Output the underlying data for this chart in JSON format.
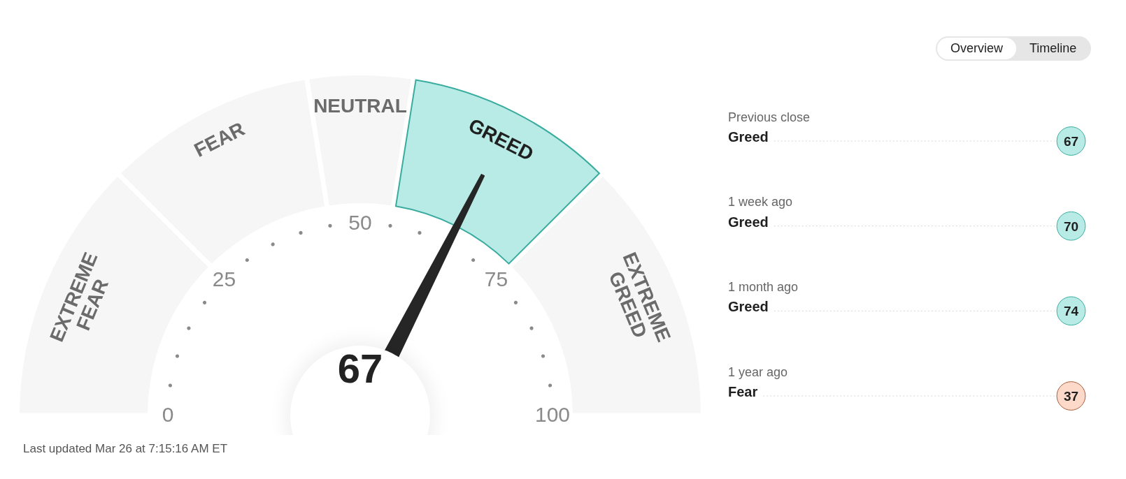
{
  "chart_data": [
    {
      "type": "donut",
      "categories": [
        "EXTREME FEAR",
        "FEAR",
        "NEUTRAL",
        "GREED",
        "EXTREME GREED"
      ],
      "values": [
        25,
        20,
        10,
        20,
        25
      ],
      "colors": [
        "#f6f6f6",
        "#f6f6f6",
        "#f6f6f6",
        "#b8ebe5",
        "#f6f6f6"
      ],
      "needle": "GREED",
      "annotations": [
        {
          "text": "67",
          "x": "GREED"
        },
        "0",
        "25",
        "50",
        "75",
        "100"
      ]
    },
    {
      "type": "other",
      "categories": [
        "Previous close",
        "1 week ago",
        "1 month ago",
        "1 year ago"
      ],
      "values": [
        67,
        70,
        74,
        37
      ],
      "colors": [
        "#b8ebe5",
        "#b8ebe5",
        "#b8ebe5",
        "#fcd9c9"
      ],
      "data_labels": true,
      "annotations": [
        {
          "text": "Greed",
          "x": "Previous close"
        },
        {
          "text": "Greed",
          "x": "1 week ago"
        },
        {
          "text": "Greed",
          "x": "1 month ago"
        },
        {
          "text": "Fear",
          "x": "1 year ago"
        },
        "Overview",
        "Timeline"
      ]
    },
    {
      "type": "other",
      "annotations": [
        "Last updated Mar 26 at 7:15:16 AM ET"
      ]
    }
  ]
}
